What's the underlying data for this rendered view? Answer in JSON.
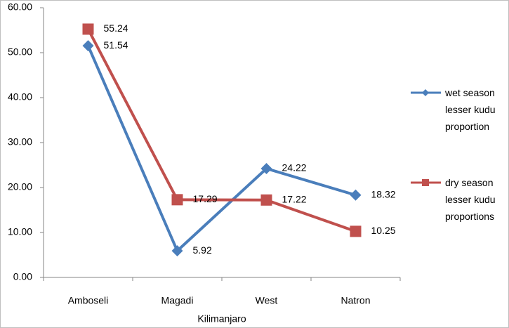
{
  "chart_data": {
    "type": "line",
    "x_label": "Kilimanjaro",
    "categories": [
      "Amboseli",
      "Magadi",
      "West",
      "Natron"
    ],
    "series": [
      {
        "name": "wet season lesser kudu proportion",
        "color": "#4a7ebb",
        "marker": "diamond",
        "values": [
          51.54,
          5.92,
          24.22,
          18.32
        ]
      },
      {
        "name": "dry season lesser kudu proportions",
        "color": "#c0504d",
        "marker": "square",
        "values": [
          55.24,
          17.29,
          17.22,
          10.25
        ]
      }
    ],
    "ylim": [
      0,
      60
    ],
    "yticks": [
      {
        "value": 0,
        "label": "0.00"
      },
      {
        "value": 10,
        "label": "10.00"
      },
      {
        "value": 20,
        "label": "20.00"
      },
      {
        "value": 30,
        "label": "30.00"
      },
      {
        "value": 40,
        "label": "40.00"
      },
      {
        "value": 50,
        "label": "50.00"
      },
      {
        "value": 60,
        "label": "60.00"
      }
    ],
    "grid": false,
    "legend": "right"
  }
}
